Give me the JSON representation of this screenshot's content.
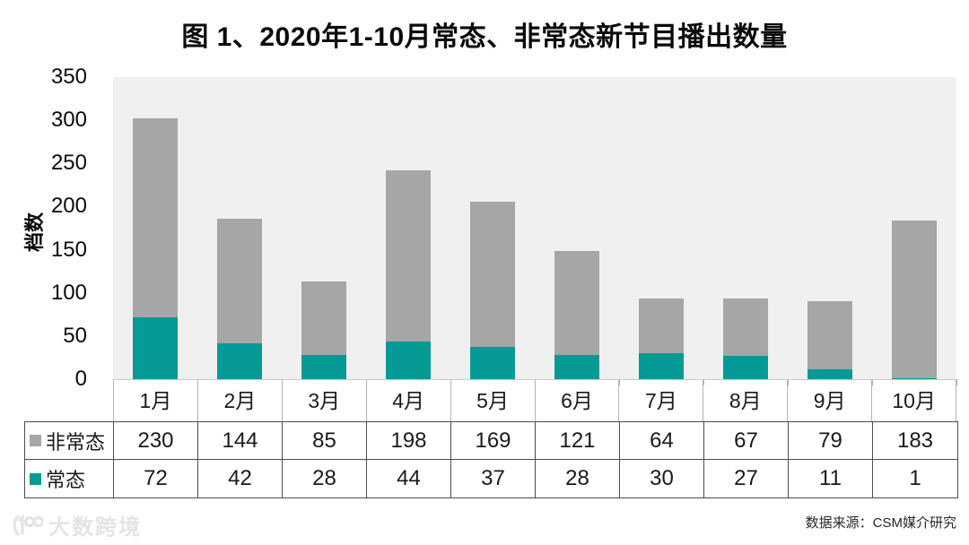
{
  "title": "图 1、2020年1-10月常态、非常态新节目播出数量",
  "chart_data": {
    "type": "bar",
    "stacked": true,
    "title": "图 1、2020年1-10月常态、非常态新节目播出数量",
    "xlabel": "",
    "ylabel": "档数",
    "ylim": [
      0,
      350
    ],
    "ytick_step": 50,
    "yticks": [
      350,
      300,
      250,
      200,
      150,
      100,
      50,
      0
    ],
    "grid": false,
    "plot_background": "#f0f0f0",
    "legend_position": "table-left",
    "categories": [
      "1月",
      "2月",
      "3月",
      "4月",
      "5月",
      "6月",
      "7月",
      "8月",
      "9月",
      "10月"
    ],
    "series": [
      {
        "name": "非常态",
        "key": "non-normal",
        "color": "#a6a6a6",
        "values": [
          230,
          144,
          85,
          198,
          169,
          121,
          64,
          67,
          79,
          183
        ]
      },
      {
        "name": "常态",
        "key": "normal",
        "color": "#069a96",
        "values": [
          72,
          42,
          28,
          44,
          37,
          28,
          30,
          27,
          11,
          1
        ]
      }
    ]
  },
  "footer": {
    "source": "数据来源：CSM媒介研究"
  },
  "watermark": {
    "text": "大数跨境",
    "icon": "logo-100-icon"
  }
}
